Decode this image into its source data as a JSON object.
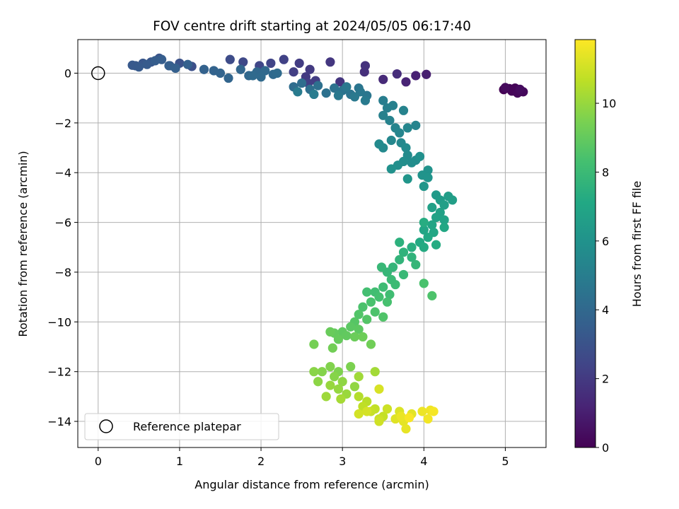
{
  "chart_data": {
    "type": "scatter",
    "title": "FOV centre drift starting at 2024/05/05 06:17:40",
    "xlabel": "Angular distance from reference (arcmin)",
    "ylabel": "Rotation from reference (arcmin)",
    "xlim": [
      -0.25,
      5.5
    ],
    "ylim": [
      -15.05,
      1.35
    ],
    "xticks": [
      0,
      1,
      2,
      3,
      4,
      5
    ],
    "xtick_labels": [
      "0",
      "1",
      "2",
      "3",
      "4",
      "5"
    ],
    "yticks": [
      0,
      -2,
      -4,
      -6,
      -8,
      -10,
      -12,
      -14
    ],
    "ytick_labels": [
      "0",
      "−2",
      "−4",
      "−6",
      "−8",
      "−10",
      "−12",
      "−14"
    ],
    "grid": true,
    "colorbar": {
      "label": "Hours from first FF file",
      "range": [
        0,
        11.85
      ],
      "colormap": "viridis",
      "ticks": [
        0,
        2,
        4,
        6,
        8,
        10
      ],
      "tick_labels": [
        "0",
        "2",
        "4",
        "6",
        "8",
        "10"
      ]
    },
    "reference": {
      "x": 0,
      "y": 0,
      "label": "Reference platepar"
    },
    "legend": {
      "position": "lower-left",
      "entries": [
        "Reference platepar"
      ]
    },
    "points": [
      [
        4.98,
        -0.66,
        0.0
      ],
      [
        5.05,
        -0.62,
        0.05
      ],
      [
        5.12,
        -0.6,
        0.1
      ],
      [
        5.08,
        -0.72,
        0.15
      ],
      [
        5.15,
        -0.8,
        0.2
      ],
      [
        5.22,
        -0.75,
        0.25
      ],
      [
        5.0,
        -0.58,
        0.3
      ],
      [
        5.18,
        -0.65,
        0.35
      ],
      [
        4.03,
        -0.05,
        1.0
      ],
      [
        3.9,
        -0.1,
        1.1
      ],
      [
        3.78,
        -0.35,
        1.2
      ],
      [
        3.5,
        -0.25,
        1.4
      ],
      [
        3.67,
        -0.03,
        1.5
      ],
      [
        3.27,
        0.05,
        1.6
      ],
      [
        3.28,
        0.3,
        1.7
      ],
      [
        2.97,
        -0.35,
        1.8
      ],
      [
        2.85,
        0.45,
        1.9
      ],
      [
        2.6,
        0.15,
        2.0
      ],
      [
        2.47,
        0.4,
        2.1
      ],
      [
        2.4,
        0.05,
        2.2
      ],
      [
        2.28,
        0.55,
        2.3
      ],
      [
        2.12,
        0.4,
        2.4
      ],
      [
        1.98,
        0.3,
        2.5
      ],
      [
        1.78,
        0.45,
        2.6
      ],
      [
        1.62,
        0.55,
        2.7
      ],
      [
        2.55,
        -0.15,
        2.0
      ],
      [
        2.67,
        -0.3,
        2.1
      ],
      [
        2.58,
        -0.4,
        2.2
      ],
      [
        1.15,
        0.27,
        2.9
      ],
      [
        1.0,
        0.4,
        3.0
      ],
      [
        0.88,
        0.3,
        3.05
      ],
      [
        0.75,
        0.6,
        3.1
      ],
      [
        0.65,
        0.45,
        3.15
      ],
      [
        0.55,
        0.4,
        3.2
      ],
      [
        0.46,
        0.3,
        3.25
      ],
      [
        0.42,
        0.32,
        3.3
      ],
      [
        0.5,
        0.25,
        3.35
      ],
      [
        0.6,
        0.35,
        3.4
      ],
      [
        0.7,
        0.5,
        3.45
      ],
      [
        0.78,
        0.55,
        3.5
      ],
      [
        0.87,
        0.3,
        3.55
      ],
      [
        0.95,
        0.2,
        3.6
      ],
      [
        1.1,
        0.35,
        3.65
      ],
      [
        1.3,
        0.15,
        3.7
      ],
      [
        1.42,
        0.1,
        3.75
      ],
      [
        1.5,
        0.0,
        3.8
      ],
      [
        1.6,
        -0.2,
        3.85
      ],
      [
        1.75,
        0.15,
        3.9
      ],
      [
        1.85,
        -0.1,
        3.95
      ],
      [
        1.95,
        0.05,
        4.0
      ],
      [
        2.05,
        0.1,
        4.02
      ],
      [
        2.15,
        -0.05,
        4.05
      ],
      [
        2.0,
        -0.15,
        4.07
      ],
      [
        1.9,
        -0.1,
        4.1
      ],
      [
        2.2,
        0.0,
        4.12
      ],
      [
        2.4,
        -0.55,
        4.2
      ],
      [
        2.5,
        -0.4,
        4.25
      ],
      [
        2.6,
        -0.65,
        4.3
      ],
      [
        2.7,
        -0.5,
        4.35
      ],
      [
        2.8,
        -0.8,
        4.4
      ],
      [
        2.9,
        -0.6,
        4.45
      ],
      [
        3.0,
        -0.7,
        4.5
      ],
      [
        3.1,
        -0.85,
        4.55
      ],
      [
        3.2,
        -0.6,
        4.6
      ],
      [
        3.3,
        -0.9,
        4.65
      ],
      [
        3.22,
        -0.75,
        4.7
      ],
      [
        3.05,
        -0.55,
        4.72
      ],
      [
        2.95,
        -0.9,
        4.75
      ],
      [
        3.15,
        -0.95,
        4.8
      ],
      [
        3.28,
        -1.1,
        4.85
      ],
      [
        2.45,
        -0.75,
        4.9
      ],
      [
        2.65,
        -0.85,
        4.92
      ],
      [
        3.5,
        -1.1,
        5.0
      ],
      [
        3.55,
        -1.4,
        5.05
      ],
      [
        3.62,
        -1.3,
        5.1
      ],
      [
        3.5,
        -1.7,
        5.15
      ],
      [
        3.58,
        -1.9,
        5.2
      ],
      [
        3.75,
        -1.5,
        5.25
      ],
      [
        3.65,
        -2.2,
        5.3
      ],
      [
        3.7,
        -2.4,
        5.35
      ],
      [
        3.8,
        -2.2,
        5.4
      ],
      [
        3.6,
        -2.7,
        5.45
      ],
      [
        3.72,
        -2.8,
        5.5
      ],
      [
        3.5,
        -3.0,
        5.55
      ],
      [
        3.45,
        -2.85,
        5.6
      ],
      [
        3.78,
        -3.0,
        5.62
      ],
      [
        3.8,
        -3.3,
        5.65
      ],
      [
        3.9,
        -3.5,
        5.7
      ],
      [
        3.85,
        -3.6,
        5.75
      ],
      [
        3.75,
        -3.55,
        5.8
      ],
      [
        3.68,
        -3.7,
        5.85
      ],
      [
        3.95,
        -3.35,
        5.9
      ],
      [
        3.6,
        -3.85,
        5.95
      ],
      [
        4.05,
        -3.9,
        6.0
      ],
      [
        3.98,
        -4.1,
        6.05
      ],
      [
        4.05,
        -4.2,
        6.1
      ],
      [
        3.8,
        -4.25,
        6.15
      ],
      [
        4.0,
        -4.55,
        6.2
      ],
      [
        3.9,
        -2.1,
        5.3
      ],
      [
        4.15,
        -4.9,
        6.4
      ],
      [
        4.2,
        -5.1,
        6.5
      ],
      [
        4.3,
        -4.95,
        6.55
      ],
      [
        4.35,
        -5.1,
        6.6
      ],
      [
        4.25,
        -5.3,
        6.65
      ],
      [
        4.1,
        -5.4,
        6.7
      ],
      [
        4.2,
        -5.6,
        6.75
      ],
      [
        4.15,
        -5.8,
        6.8
      ],
      [
        4.25,
        -5.9,
        6.85
      ],
      [
        4.1,
        -6.1,
        6.9
      ],
      [
        4.0,
        -6.3,
        6.95
      ],
      [
        4.12,
        -6.4,
        7.0
      ],
      [
        4.25,
        -6.2,
        7.05
      ],
      [
        4.05,
        -6.6,
        7.1
      ],
      [
        3.95,
        -6.8,
        7.15
      ],
      [
        4.0,
        -7.0,
        7.2
      ],
      [
        4.15,
        -6.9,
        7.25
      ],
      [
        4.0,
        -6.0,
        7.3
      ],
      [
        3.85,
        -7.0,
        7.35
      ],
      [
        3.7,
        -6.8,
        7.5
      ],
      [
        3.75,
        -7.2,
        7.6
      ],
      [
        3.85,
        -7.4,
        7.65
      ],
      [
        3.7,
        -7.5,
        7.7
      ],
      [
        3.62,
        -7.8,
        7.75
      ],
      [
        3.9,
        -7.7,
        7.8
      ],
      [
        3.55,
        -8.0,
        7.85
      ],
      [
        3.48,
        -7.8,
        7.9
      ],
      [
        3.75,
        -8.1,
        7.95
      ],
      [
        3.6,
        -8.3,
        8.0
      ],
      [
        3.65,
        -8.5,
        8.05
      ],
      [
        3.5,
        -8.6,
        8.1
      ],
      [
        3.58,
        -8.9,
        8.15
      ],
      [
        3.4,
        -8.8,
        8.2
      ],
      [
        3.3,
        -8.8,
        8.25
      ],
      [
        3.45,
        -9.0,
        8.3
      ],
      [
        3.55,
        -9.2,
        8.35
      ],
      [
        3.35,
        -9.2,
        8.4
      ],
      [
        3.25,
        -9.4,
        8.45
      ],
      [
        3.4,
        -9.6,
        8.5
      ],
      [
        3.5,
        -9.8,
        8.55
      ],
      [
        3.2,
        -9.7,
        8.6
      ],
      [
        3.3,
        -9.9,
        8.65
      ],
      [
        3.15,
        -10.0,
        8.7
      ],
      [
        4.0,
        -8.45,
        8.4
      ],
      [
        4.1,
        -8.95,
        8.5
      ],
      [
        3.1,
        -10.2,
        8.8
      ],
      [
        3.2,
        -10.3,
        8.85
      ],
      [
        3.0,
        -10.4,
        8.9
      ],
      [
        3.05,
        -10.55,
        8.95
      ],
      [
        2.9,
        -10.45,
        9.0
      ],
      [
        2.95,
        -10.7,
        9.05
      ],
      [
        2.85,
        -10.4,
        9.1
      ],
      [
        3.15,
        -10.6,
        9.15
      ],
      [
        3.25,
        -10.6,
        9.2
      ],
      [
        3.35,
        -10.9,
        9.25
      ],
      [
        2.88,
        -11.05,
        9.3
      ],
      [
        2.65,
        -10.9,
        9.35
      ],
      [
        3.1,
        -11.8,
        9.5
      ],
      [
        2.95,
        -12.0,
        9.55
      ],
      [
        2.85,
        -11.8,
        9.6
      ],
      [
        2.75,
        -12.0,
        9.65
      ],
      [
        2.9,
        -12.2,
        9.7
      ],
      [
        2.65,
        -12.0,
        9.75
      ],
      [
        2.7,
        -12.4,
        9.8
      ],
      [
        3.0,
        -12.4,
        9.85
      ],
      [
        3.15,
        -12.6,
        9.9
      ],
      [
        2.95,
        -12.7,
        9.95
      ],
      [
        2.85,
        -12.55,
        10.0
      ],
      [
        3.05,
        -12.9,
        10.05
      ],
      [
        2.8,
        -13.0,
        10.1
      ],
      [
        3.2,
        -12.2,
        10.15
      ],
      [
        3.4,
        -12.0,
        10.2
      ],
      [
        2.98,
        -13.1,
        10.25
      ],
      [
        3.2,
        -13.0,
        10.5
      ],
      [
        3.3,
        -13.2,
        10.6
      ],
      [
        3.25,
        -13.4,
        10.7
      ],
      [
        3.4,
        -13.5,
        10.75
      ],
      [
        3.5,
        -13.8,
        10.8
      ],
      [
        3.35,
        -13.6,
        10.85
      ],
      [
        3.45,
        -13.9,
        10.9
      ],
      [
        3.55,
        -13.5,
        10.95
      ],
      [
        3.45,
        -14.0,
        11.0
      ],
      [
        3.2,
        -13.7,
        11.05
      ],
      [
        3.3,
        -13.6,
        11.1
      ],
      [
        3.45,
        -12.7,
        11.15
      ],
      [
        3.7,
        -13.6,
        11.2
      ],
      [
        3.65,
        -13.9,
        11.3
      ],
      [
        3.85,
        -13.7,
        11.35
      ],
      [
        3.75,
        -14.0,
        11.4
      ],
      [
        3.78,
        -14.3,
        11.45
      ],
      [
        3.72,
        -13.8,
        11.5
      ],
      [
        3.98,
        -13.6,
        11.55
      ],
      [
        4.08,
        -13.55,
        11.6
      ],
      [
        4.05,
        -13.9,
        11.65
      ],
      [
        4.12,
        -13.6,
        11.7
      ],
      [
        3.82,
        -13.85,
        11.75
      ]
    ]
  }
}
